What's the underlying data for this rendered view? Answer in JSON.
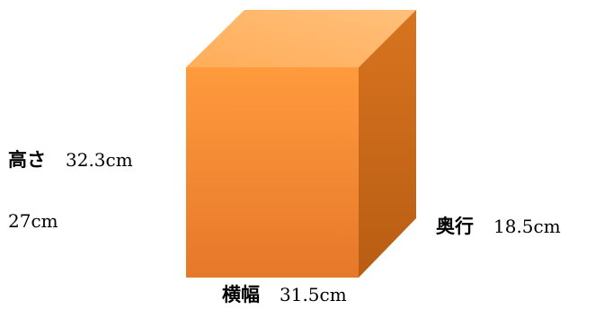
{
  "diagram": {
    "colors": {
      "front_top": "#ff9a3d",
      "front_bottom": "#e6782a",
      "top_face": "#ffad59",
      "top_face_light": "#ffc07a",
      "side_face": "#d8741f",
      "side_face_dark": "#b85d13"
    },
    "height": {
      "label": "高さ",
      "value": "32.3cm"
    },
    "extra_value": "27cm",
    "depth": {
      "label": "奥行",
      "value": "18.5cm"
    },
    "width": {
      "label": "横幅",
      "value": "31.5cm"
    }
  }
}
